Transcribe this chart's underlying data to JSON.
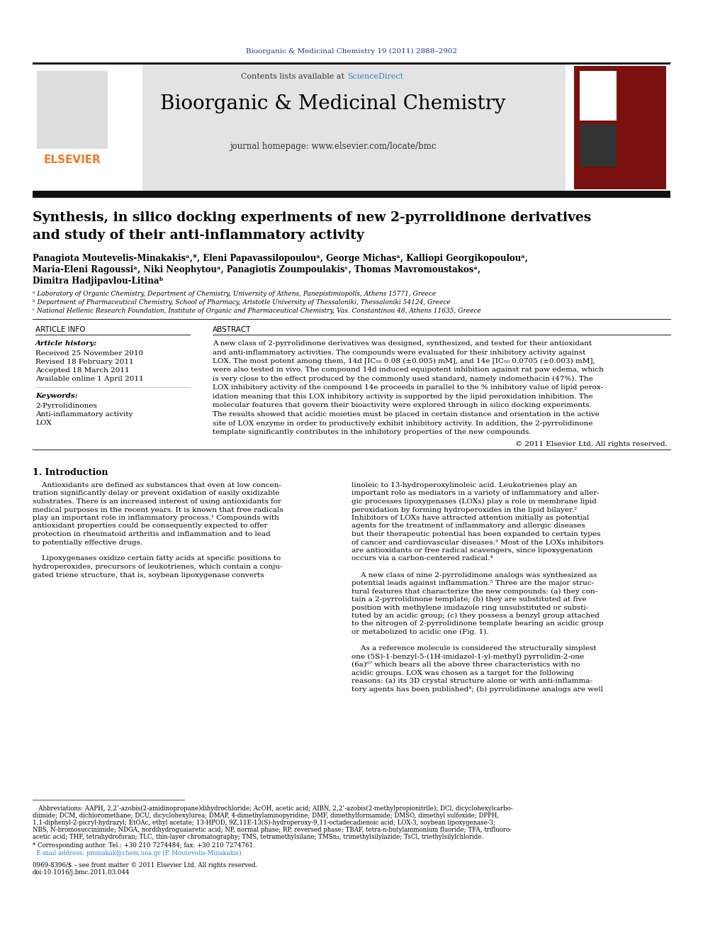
{
  "journal_ref": "Bioorganic & Medicinal Chemistry 19 (2011) 2888–2902",
  "journal_name": "Bioorganic & Medicinal Chemistry",
  "journal_homepage": "journal homepage: www.elsevier.com/locate/bmc",
  "affil_a": "ᵃ Laboratory of Organic Chemistry, Department of Chemistry, University of Athens, Panepistimiopolis, Athens 15771, Greece",
  "affil_b": "ᵇ Department of Pharmaceutical Chemistry, School of Pharmacy, Aristotle University of Thessaloniki, Thessaloniki 54124, Greece",
  "affil_c": "ᶜ National Hellenic Research Foundation, Institute of Organic and Pharmaceutical Chemistry, Vas. Constantinou 48, Athens 11635, Greece",
  "article_info_header": "ARTICLE INFO",
  "abstract_header": "ABSTRACT",
  "article_history_label": "Article history:",
  "received": "Received 25 November 2010",
  "revised": "Revised 18 February 2011",
  "accepted": "Accepted 18 March 2011",
  "available": "Available online 1 April 2011",
  "keywords_label": "Keywords:",
  "keyword1": "2-Pyrrolidinones",
  "keyword2": "Anti-inflammatory activity",
  "keyword3": "LOX",
  "copyright_line": "© 2011 Elsevier Ltd. All rights reserved.",
  "intro_header": "1. Introduction",
  "bg_color": "#ffffff",
  "header_bg": "#e3e3e3",
  "journal_ref_color": "#1a3a8a",
  "elsevier_color": "#f47920",
  "sciencedirect_color": "#2e86c1"
}
